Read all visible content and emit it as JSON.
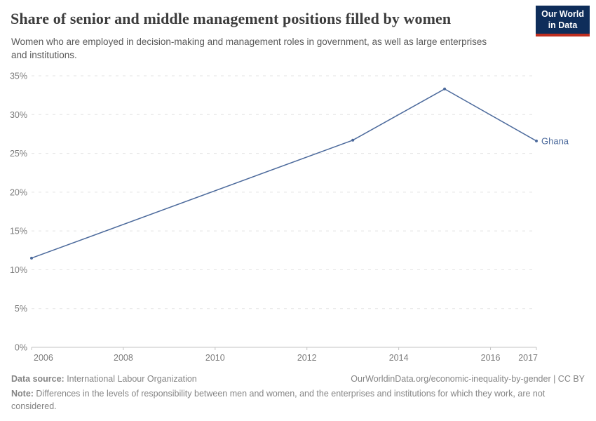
{
  "header": {
    "title": "Share of senior and middle management positions filled by women",
    "subtitle": "Women who are employed in decision-making and management roles in government, as well as large enterprises and institutions.",
    "logo_line1": "Our World",
    "logo_line2": "in Data"
  },
  "chart_data": {
    "type": "line",
    "title": "Share of senior and middle management positions filled by women",
    "entity_label": "Ghana",
    "series": [
      {
        "name": "Ghana",
        "points": [
          {
            "year": 2006,
            "value": 11.5
          },
          {
            "year": 2013,
            "value": 26.7
          },
          {
            "year": 2015,
            "value": 33.3
          },
          {
            "year": 2017,
            "value": 26.6
          }
        ]
      }
    ],
    "x_ticks": [
      2006,
      2008,
      2010,
      2012,
      2014,
      2016,
      2017
    ],
    "y_ticks": [
      0,
      5,
      10,
      15,
      20,
      25,
      30,
      35
    ],
    "y_tick_suffix": "%",
    "xlim": [
      2006,
      2017
    ],
    "ylim": [
      0,
      35
    ],
    "grid": "horizontal-dashed",
    "legend_position": "end-of-line-label"
  },
  "colors": {
    "line": "#4c6a9c",
    "marker": "#4c6a9c",
    "entity_label": "#4c6a9c",
    "grid": "#e3e3e3",
    "axis": "#c3c3c3",
    "tick_label": "#7c7c7c",
    "logo_bg": "#0e2d5a",
    "logo_accent": "#bf2e1f"
  },
  "footer": {
    "datasource_label": "Data source:",
    "datasource_value": " International Labour Organization",
    "link": "OurWorldinData.org/economic-inequality-by-gender | CC BY",
    "note_label": "Note:",
    "note_value": " Differences in the levels of responsibility between men and women, and the enterprises and institutions for which they work, are not considered."
  }
}
